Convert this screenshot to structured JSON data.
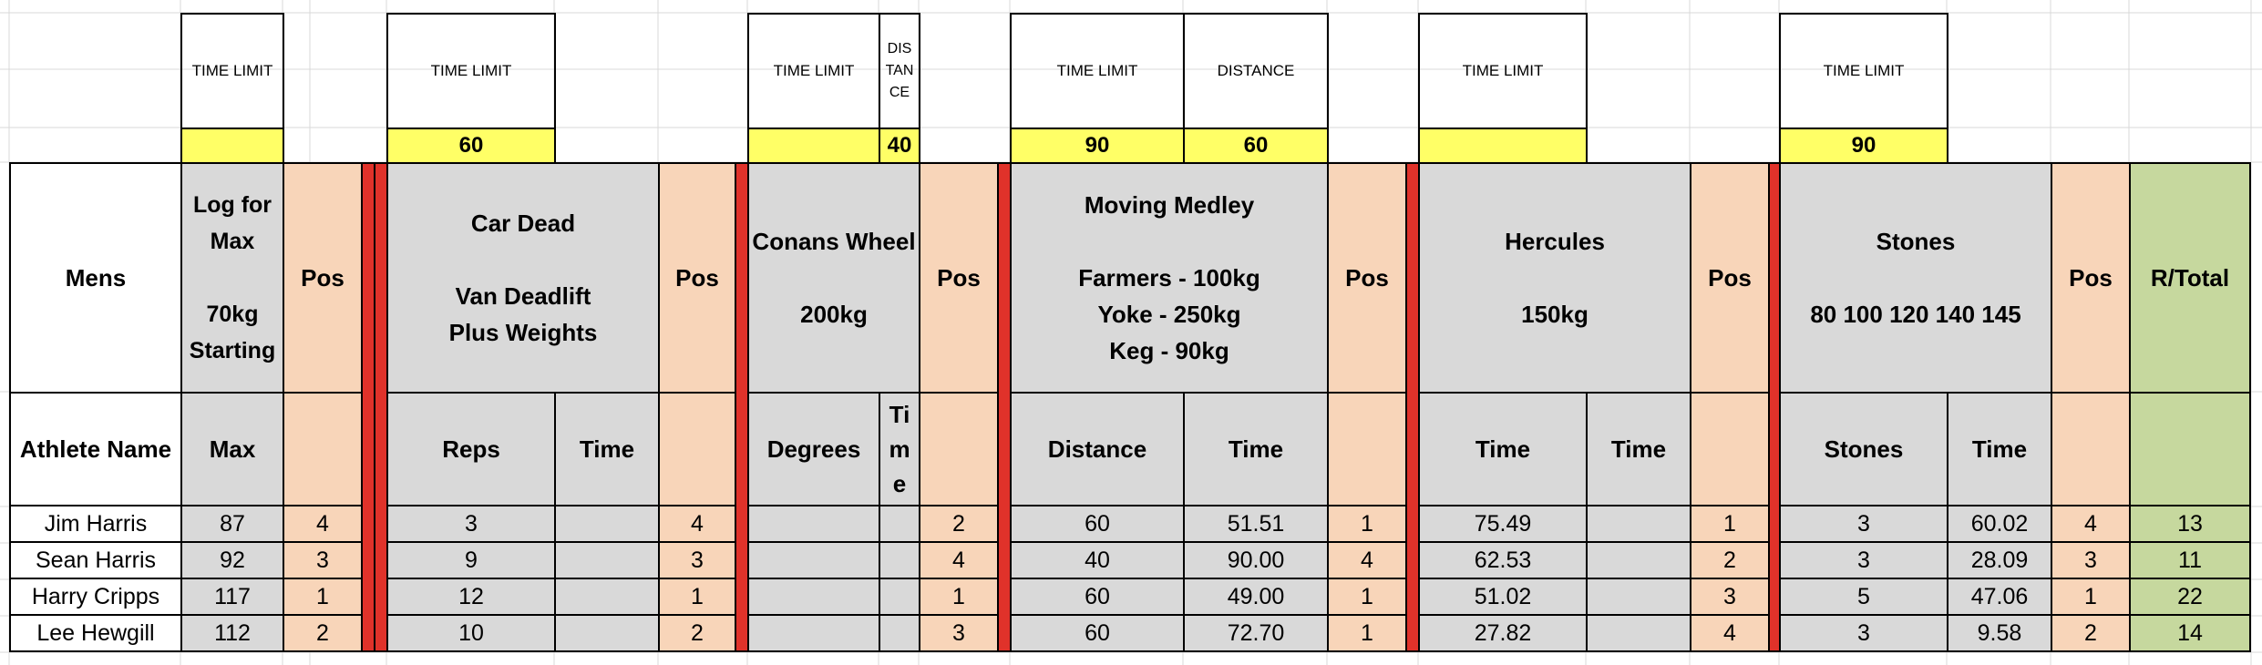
{
  "time_limit_label": "TIME LIMIT",
  "distance_label": "DISTANCE",
  "distance_label_stacked": "DIS\nTAN\nCE",
  "limits": {
    "log": "",
    "car_dead": "60",
    "conans_time": "",
    "conans_distance": "40",
    "medley_time": "90",
    "medley_distance": "60",
    "hercules": "",
    "stones": "90"
  },
  "headers": {
    "mens": "Mens",
    "log": "Log for\nMax\n\n70kg\nStarting",
    "pos": "Pos",
    "car_dead": "Car Dead\n\nVan Deadlift\nPlus Weights",
    "conans": "Conans Wheel\n\n200kg",
    "medley": "Moving Medley\n\nFarmers - 100kg\nYoke - 250kg\nKeg - 90kg",
    "hercules": "Hercules\n\n150kg",
    "stones": "Stones\n\n80 100 120 140 145",
    "total": "R/Total"
  },
  "subheaders": {
    "athlete_name": "Athlete Name",
    "max": "Max",
    "reps": "Reps",
    "time": "Time",
    "degrees": "Degrees",
    "time_stacked": "Ti\nm\ne",
    "distance": "Distance",
    "stones": "Stones"
  },
  "athletes": [
    {
      "name": "Jim Harris",
      "log_max": "87",
      "log_pos": "4",
      "car_reps": "3",
      "car_time": "",
      "car_pos": "4",
      "conan_deg": "",
      "conan_time": "",
      "conan_pos": "2",
      "med_dist": "60",
      "med_time": "51.51",
      "med_pos": "1",
      "herc_time": "75.49",
      "herc_time2": "",
      "herc_pos": "1",
      "stones": "3",
      "stones_time": "60.02",
      "stones_pos": "4",
      "total": "13"
    },
    {
      "name": "Sean Harris",
      "log_max": "92",
      "log_pos": "3",
      "car_reps": "9",
      "car_time": "",
      "car_pos": "3",
      "conan_deg": "",
      "conan_time": "",
      "conan_pos": "4",
      "med_dist": "40",
      "med_time": "90.00",
      "med_pos": "4",
      "herc_time": "62.53",
      "herc_time2": "",
      "herc_pos": "2",
      "stones": "3",
      "stones_time": "28.09",
      "stones_pos": "3",
      "total": "11"
    },
    {
      "name": "Harry Cripps",
      "log_max": "117",
      "log_pos": "1",
      "car_reps": "12",
      "car_time": "",
      "car_pos": "1",
      "conan_deg": "",
      "conan_time": "",
      "conan_pos": "1",
      "med_dist": "60",
      "med_time": "49.00",
      "med_pos": "1",
      "herc_time": "51.02",
      "herc_time2": "",
      "herc_pos": "3",
      "stones": "5",
      "stones_time": "47.06",
      "stones_pos": "1",
      "total": "22"
    },
    {
      "name": "Lee Hewgill",
      "log_max": "112",
      "log_pos": "2",
      "car_reps": "10",
      "car_time": "",
      "car_pos": "2",
      "conan_deg": "",
      "conan_time": "",
      "conan_pos": "3",
      "med_dist": "60",
      "med_time": "72.70",
      "med_pos": "1",
      "herc_time": "27.82",
      "herc_time2": "",
      "herc_pos": "4",
      "stones": "3",
      "stones_time": "9.58",
      "stones_pos": "2",
      "total": "14"
    }
  ]
}
